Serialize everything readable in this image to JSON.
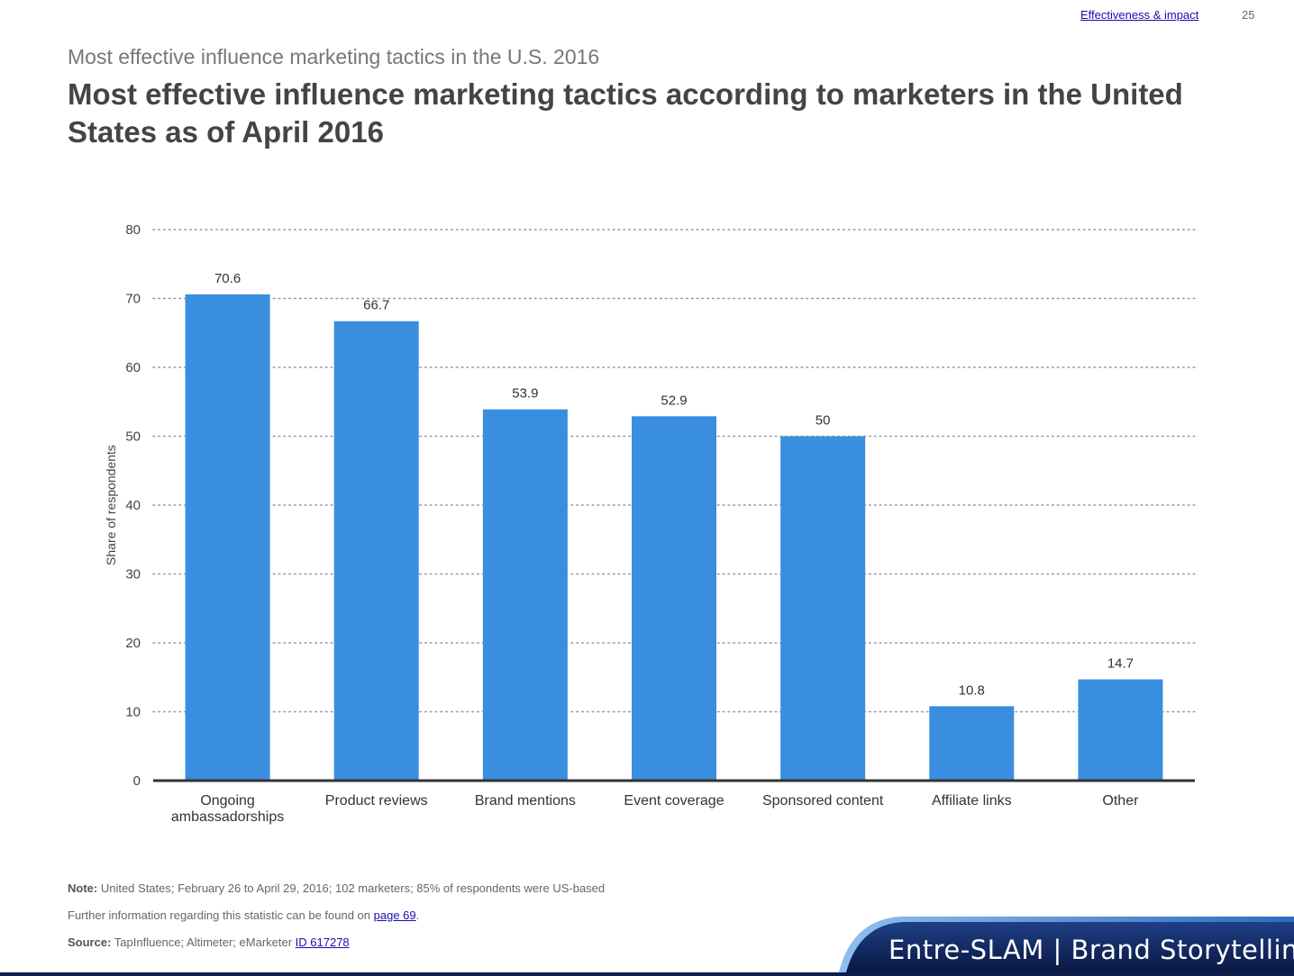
{
  "header": {
    "link": "Effectiveness & impact",
    "page": "25"
  },
  "subtitle": "Most effective influence marketing tactics in the U.S. 2016",
  "title": "Most effective influence marketing tactics according to marketers in the United States as of April 2016",
  "chart_data": {
    "type": "bar",
    "categories": [
      "Ongoing ambassadorships",
      "Product reviews",
      "Brand mentions",
      "Event coverage",
      "Sponsored content",
      "Affiliate links",
      "Other"
    ],
    "category_lines": [
      [
        "Ongoing",
        "ambassadorships"
      ],
      [
        "Product reviews"
      ],
      [
        "Brand mentions"
      ],
      [
        "Event coverage"
      ],
      [
        "Sponsored content"
      ],
      [
        "Affiliate links"
      ],
      [
        "Other"
      ]
    ],
    "values": [
      70.6,
      66.7,
      53.9,
      52.9,
      50,
      10.8,
      14.7
    ],
    "value_labels": [
      "70.6",
      "66.7",
      "53.9",
      "52.9",
      "50",
      "10.8",
      "14.7"
    ],
    "ylabel": "Share of respondents",
    "xlabel": "",
    "ylim": [
      0,
      80
    ],
    "yticks": [
      0,
      10,
      20,
      30,
      40,
      50,
      60,
      70,
      80
    ],
    "grid": true,
    "bar_color": "#3a8ee0"
  },
  "footer": {
    "note_label": "Note:",
    "note_text": " United States; February 26 to April 29, 2016; 102 marketers; 85% of respondents were US-based",
    "further_text": "Further information regarding this statistic can be found on ",
    "further_link": "page 69",
    "further_end": ".",
    "source_label": "Source:",
    "source_text": " TapInfluence; Altimeter; eMarketer ",
    "source_link": "ID 617278"
  },
  "banner": {
    "text": "Entre-SLAM | Brand Storytelling"
  }
}
